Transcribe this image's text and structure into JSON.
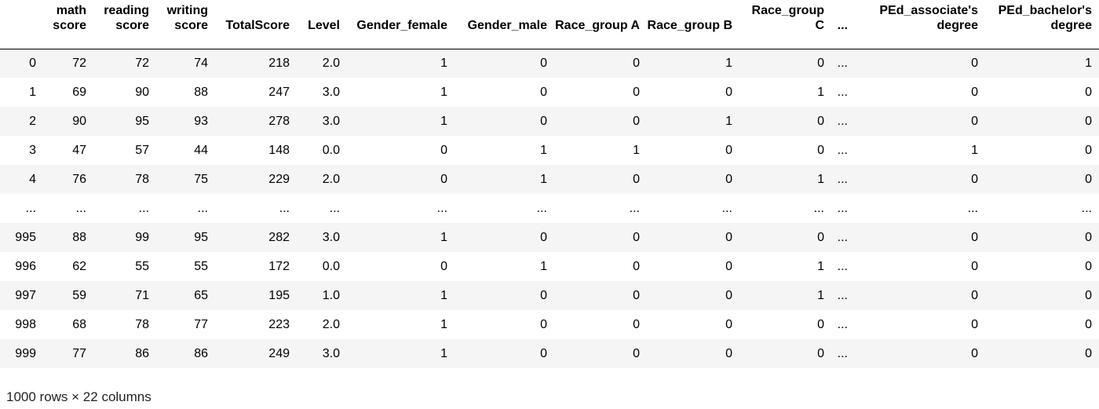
{
  "table": {
    "columns": [
      "",
      "math score",
      "reading score",
      "writing score",
      "TotalScore",
      "Level",
      "Gender_female",
      "Gender_male",
      "Race_group A",
      "Race_group B",
      "Race_group C",
      "...",
      "PEd_associate's degree",
      "PEd_bachelor's degree"
    ],
    "rows": [
      [
        "0",
        "72",
        "72",
        "74",
        "218",
        "2.0",
        "1",
        "0",
        "0",
        "1",
        "0",
        "...",
        "0",
        "1"
      ],
      [
        "1",
        "69",
        "90",
        "88",
        "247",
        "3.0",
        "1",
        "0",
        "0",
        "0",
        "1",
        "...",
        "0",
        "0"
      ],
      [
        "2",
        "90",
        "95",
        "93",
        "278",
        "3.0",
        "1",
        "0",
        "0",
        "1",
        "0",
        "...",
        "0",
        "0"
      ],
      [
        "3",
        "47",
        "57",
        "44",
        "148",
        "0.0",
        "0",
        "1",
        "1",
        "0",
        "0",
        "...",
        "1",
        "0"
      ],
      [
        "4",
        "76",
        "78",
        "75",
        "229",
        "2.0",
        "0",
        "1",
        "0",
        "0",
        "1",
        "...",
        "0",
        "0"
      ],
      [
        "...",
        "...",
        "...",
        "...",
        "...",
        "...",
        "...",
        "...",
        "...",
        "...",
        "...",
        "...",
        "...",
        "..."
      ],
      [
        "995",
        "88",
        "99",
        "95",
        "282",
        "3.0",
        "1",
        "0",
        "0",
        "0",
        "0",
        "...",
        "0",
        "0"
      ],
      [
        "996",
        "62",
        "55",
        "55",
        "172",
        "0.0",
        "0",
        "1",
        "0",
        "0",
        "1",
        "...",
        "0",
        "0"
      ],
      [
        "997",
        "59",
        "71",
        "65",
        "195",
        "1.0",
        "1",
        "0",
        "0",
        "0",
        "1",
        "...",
        "0",
        "0"
      ],
      [
        "998",
        "68",
        "78",
        "77",
        "223",
        "2.0",
        "1",
        "0",
        "0",
        "0",
        "0",
        "...",
        "0",
        "0"
      ],
      [
        "999",
        "77",
        "86",
        "86",
        "249",
        "3.0",
        "1",
        "0",
        "0",
        "0",
        "0",
        "...",
        "0",
        "0"
      ]
    ]
  },
  "footer": {
    "shape_text": "1000 rows × 22 columns"
  }
}
